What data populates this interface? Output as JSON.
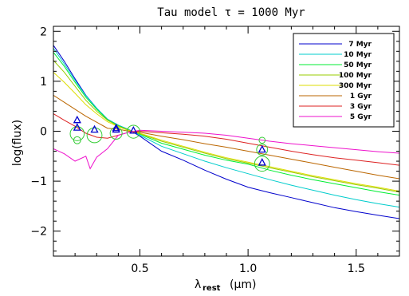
{
  "chart_data": {
    "type": "line",
    "title": "Tau model τ = 1000 Myr",
    "xlabel_main": "λ",
    "xlabel_sub": "rest",
    "xlabel_unit": "(μm)",
    "ylabel": "log(flux)",
    "xlim": [
      0.1,
      1.7
    ],
    "ylim": [
      -2.5,
      2.1
    ],
    "x_ticks": [
      0.5,
      1.0,
      1.5
    ],
    "x_tick_labels": [
      "0.5",
      "1.0",
      "1.5"
    ],
    "y_ticks": [
      2,
      1,
      0,
      -1,
      -2
    ],
    "y_tick_labels": [
      "2",
      "1",
      "0",
      "−1",
      "−2"
    ],
    "legend_position": "top-right",
    "series": [
      {
        "name": "7 Myr",
        "color": "#0000cc",
        "x": [
          0.1,
          0.15,
          0.2,
          0.25,
          0.3,
          0.35,
          0.4,
          0.45,
          0.5,
          0.6,
          0.7,
          0.8,
          0.9,
          1.0,
          1.1,
          1.2,
          1.3,
          1.4,
          1.5,
          1.6,
          1.7
        ],
        "y": [
          1.72,
          1.4,
          1.05,
          0.72,
          0.46,
          0.24,
          0.12,
          0.03,
          -0.1,
          -0.4,
          -0.58,
          -0.78,
          -0.96,
          -1.12,
          -1.23,
          -1.33,
          -1.43,
          -1.53,
          -1.61,
          -1.68,
          -1.75
        ]
      },
      {
        "name": "10 Myr",
        "color": "#00cccc",
        "x": [
          0.1,
          0.15,
          0.2,
          0.25,
          0.3,
          0.35,
          0.4,
          0.45,
          0.5,
          0.6,
          0.7,
          0.8,
          0.9,
          1.0,
          1.1,
          1.2,
          1.3,
          1.4,
          1.5,
          1.6,
          1.7
        ],
        "y": [
          1.66,
          1.35,
          1.02,
          0.71,
          0.46,
          0.24,
          0.12,
          0.03,
          -0.08,
          -0.3,
          -0.45,
          -0.6,
          -0.73,
          -0.85,
          -0.97,
          -1.08,
          -1.18,
          -1.28,
          -1.37,
          -1.45,
          -1.52
        ]
      },
      {
        "name": "50 Myr",
        "color": "#00ee33",
        "x": [
          0.1,
          0.15,
          0.2,
          0.25,
          0.3,
          0.35,
          0.4,
          0.45,
          0.5,
          0.6,
          0.7,
          0.8,
          0.9,
          1.0,
          1.1,
          1.2,
          1.3,
          1.4,
          1.5,
          1.6,
          1.7
        ],
        "y": [
          1.58,
          1.3,
          0.98,
          0.68,
          0.44,
          0.23,
          0.11,
          0.02,
          -0.06,
          -0.24,
          -0.36,
          -0.48,
          -0.58,
          -0.66,
          -0.78,
          -0.88,
          -0.97,
          -1.05,
          -1.13,
          -1.21,
          -1.28
        ]
      },
      {
        "name": "100 Myr",
        "color": "#99cc00",
        "x": [
          0.1,
          0.15,
          0.2,
          0.25,
          0.3,
          0.35,
          0.4,
          0.45,
          0.5,
          0.6,
          0.7,
          0.8,
          0.9,
          1.0,
          1.1,
          1.2,
          1.3,
          1.4,
          1.5,
          1.6,
          1.7
        ],
        "y": [
          1.42,
          1.18,
          0.9,
          0.62,
          0.4,
          0.22,
          0.1,
          0.02,
          -0.05,
          -0.2,
          -0.32,
          -0.44,
          -0.55,
          -0.64,
          -0.73,
          -0.82,
          -0.91,
          -0.99,
          -1.07,
          -1.14,
          -1.22
        ]
      },
      {
        "name": "300 Myr",
        "color": "#dddd00",
        "x": [
          0.1,
          0.15,
          0.2,
          0.25,
          0.3,
          0.35,
          0.4,
          0.45,
          0.5,
          0.6,
          0.7,
          0.8,
          0.9,
          1.0,
          1.1,
          1.2,
          1.3,
          1.4,
          1.5,
          1.6,
          1.7
        ],
        "y": [
          1.18,
          0.98,
          0.76,
          0.53,
          0.35,
          0.19,
          0.09,
          0.01,
          -0.04,
          -0.18,
          -0.3,
          -0.42,
          -0.53,
          -0.62,
          -0.71,
          -0.8,
          -0.89,
          -0.97,
          -1.05,
          -1.12,
          -1.2
        ]
      },
      {
        "name": "1 Gyr",
        "color": "#bb6600",
        "x": [
          0.1,
          0.15,
          0.2,
          0.25,
          0.3,
          0.35,
          0.4,
          0.45,
          0.5,
          0.6,
          0.7,
          0.8,
          0.9,
          1.0,
          1.1,
          1.2,
          1.3,
          1.4,
          1.5,
          1.6,
          1.7
        ],
        "y": [
          0.72,
          0.58,
          0.44,
          0.3,
          0.18,
          0.06,
          0.04,
          0.0,
          -0.02,
          -0.1,
          -0.17,
          -0.25,
          -0.32,
          -0.4,
          -0.48,
          -0.56,
          -0.64,
          -0.72,
          -0.8,
          -0.88,
          -0.95
        ]
      },
      {
        "name": "3 Gyr",
        "color": "#dd2222",
        "x": [
          0.1,
          0.15,
          0.2,
          0.25,
          0.3,
          0.35,
          0.4,
          0.45,
          0.5,
          0.6,
          0.7,
          0.8,
          0.9,
          1.0,
          1.1,
          1.2,
          1.3,
          1.4,
          1.5,
          1.6,
          1.7
        ],
        "y": [
          0.35,
          0.22,
          0.1,
          -0.04,
          -0.12,
          -0.14,
          -0.08,
          -0.02,
          0.0,
          -0.03,
          -0.06,
          -0.1,
          -0.16,
          -0.24,
          -0.32,
          -0.4,
          -0.47,
          -0.53,
          -0.58,
          -0.63,
          -0.68
        ]
      },
      {
        "name": "5 Gyr",
        "color": "#ee11cc",
        "x": [
          0.1,
          0.15,
          0.2,
          0.25,
          0.27,
          0.3,
          0.35,
          0.4,
          0.45,
          0.5,
          0.6,
          0.7,
          0.8,
          0.9,
          1.0,
          1.1,
          1.2,
          1.3,
          1.4,
          1.5,
          1.6,
          1.7
        ],
        "y": [
          -0.35,
          -0.45,
          -0.6,
          -0.5,
          -0.75,
          -0.52,
          -0.35,
          -0.08,
          -0.02,
          0.02,
          0.0,
          -0.02,
          -0.04,
          -0.08,
          -0.14,
          -0.2,
          -0.25,
          -0.29,
          -0.33,
          -0.37,
          -0.41,
          -0.44
        ]
      }
    ],
    "triangles": {
      "color": "#0000cc",
      "points": [
        [
          0.21,
          0.22
        ],
        [
          0.21,
          0.07
        ],
        [
          0.29,
          0.03
        ],
        [
          0.39,
          0.03
        ],
        [
          0.39,
          0.06
        ],
        [
          0.47,
          0.01
        ],
        [
          1.065,
          -0.37
        ],
        [
          1.065,
          -0.63
        ]
      ]
    },
    "circles": {
      "color": "#33cc33",
      "points": [
        {
          "x": 0.21,
          "y": -0.18,
          "r": 0.07
        },
        {
          "x": 0.21,
          "y": -0.05,
          "r": 0.14
        },
        {
          "x": 0.29,
          "y": -0.08,
          "r": 0.15
        },
        {
          "x": 0.39,
          "y": -0.04,
          "r": 0.12
        },
        {
          "x": 0.47,
          "y": -0.01,
          "r": 0.13
        },
        {
          "x": 1.065,
          "y": -0.18,
          "r": 0.06
        },
        {
          "x": 1.065,
          "y": -0.37,
          "r": 0.11
        },
        {
          "x": 1.065,
          "y": -0.65,
          "r": 0.15
        }
      ]
    }
  }
}
